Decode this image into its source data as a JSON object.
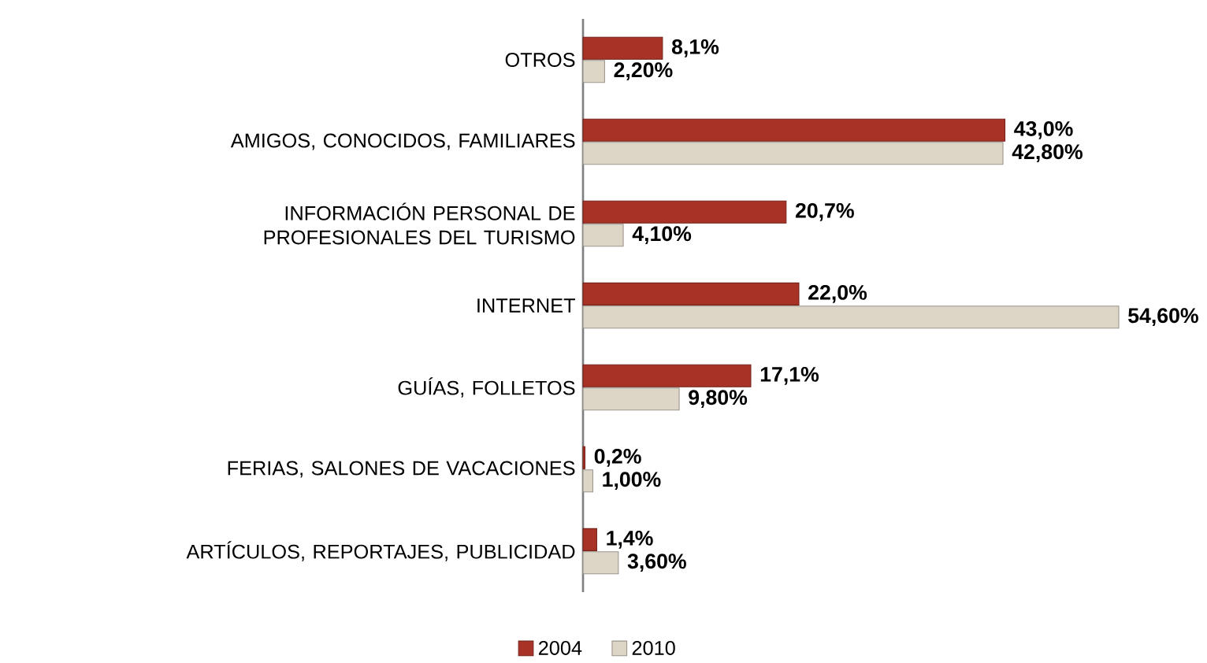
{
  "chart_data": {
    "type": "bar",
    "orientation": "horizontal",
    "categories": [
      "OTROS",
      "AMIGOS, CONOCIDOS,  FAMILIARES",
      "INFORMACIÓN PERSONAL DE PROFESIONALES DEL TURISMO",
      "INTERNET",
      "GUÍAS,  FOLLETOS",
      "FERIAS, SALONES DE VACACIONES",
      "ARTÍCULOS, REPORTAJES,  PUBLICIDAD"
    ],
    "series": [
      {
        "name": "2004",
        "color": "#a93226",
        "values": [
          8.1,
          43.0,
          20.7,
          22.0,
          17.1,
          0.2,
          1.4
        ],
        "value_labels": [
          "8,1%",
          "43,0%",
          "20,7%",
          "22,0%",
          "17,1%",
          "0,2%",
          "1,4%"
        ]
      },
      {
        "name": "2010",
        "color": "#ddd5c6",
        "values": [
          2.2,
          42.8,
          4.1,
          54.6,
          9.8,
          1.0,
          3.6
        ],
        "value_labels": [
          "2,20%",
          "42,80%",
          "4,10%",
          "54,60%",
          "9,80%",
          "1,00%",
          "3,60%"
        ]
      }
    ],
    "legend": "bottom"
  }
}
